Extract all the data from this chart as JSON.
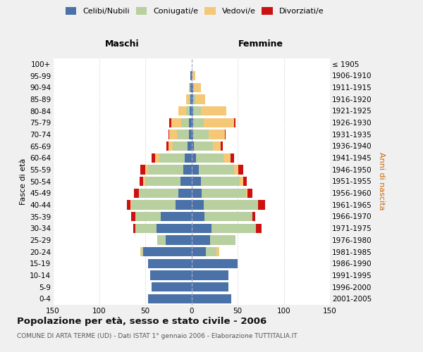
{
  "age_groups": [
    "0-4",
    "5-9",
    "10-14",
    "15-19",
    "20-24",
    "25-29",
    "30-34",
    "35-39",
    "40-44",
    "45-49",
    "50-54",
    "55-59",
    "60-64",
    "65-69",
    "70-74",
    "75-79",
    "80-84",
    "85-89",
    "90-94",
    "95-99",
    "100+"
  ],
  "birth_years": [
    "2001-2005",
    "1996-2000",
    "1991-1995",
    "1986-1990",
    "1981-1985",
    "1976-1980",
    "1971-1975",
    "1966-1970",
    "1961-1965",
    "1956-1960",
    "1951-1955",
    "1946-1950",
    "1941-1945",
    "1936-1940",
    "1931-1935",
    "1926-1930",
    "1921-1925",
    "1916-1920",
    "1911-1915",
    "1906-1910",
    "≤ 1905"
  ],
  "colors": {
    "celibi": "#4a72a8",
    "coniugati": "#b8cfa0",
    "vedovi": "#f5c878",
    "divorziati": "#cc1111"
  },
  "maschi_celibi": [
    47,
    43,
    45,
    47,
    52,
    28,
    38,
    33,
    17,
    14,
    12,
    9,
    7,
    4,
    3,
    3,
    2,
    1,
    1,
    1,
    0
  ],
  "maschi_coniugati": [
    0,
    0,
    0,
    0,
    2,
    9,
    23,
    28,
    48,
    42,
    38,
    38,
    28,
    16,
    13,
    8,
    4,
    2,
    1,
    0,
    0
  ],
  "maschi_vedovi": [
    0,
    0,
    0,
    0,
    1,
    0,
    0,
    0,
    1,
    1,
    2,
    3,
    4,
    5,
    8,
    11,
    8,
    3,
    1,
    0,
    0
  ],
  "maschi_divorziati": [
    0,
    0,
    0,
    0,
    0,
    0,
    2,
    4,
    4,
    5,
    4,
    5,
    4,
    2,
    1,
    2,
    0,
    0,
    0,
    0,
    0
  ],
  "femmine_celibi": [
    43,
    40,
    40,
    50,
    16,
    20,
    22,
    14,
    13,
    11,
    10,
    8,
    5,
    3,
    2,
    2,
    2,
    2,
    2,
    1,
    0
  ],
  "femmine_coniugati": [
    0,
    0,
    0,
    0,
    11,
    28,
    48,
    52,
    58,
    48,
    42,
    38,
    30,
    20,
    17,
    11,
    8,
    2,
    1,
    0,
    0
  ],
  "femmine_vedovi": [
    0,
    0,
    0,
    0,
    3,
    0,
    0,
    0,
    1,
    2,
    4,
    5,
    7,
    9,
    17,
    33,
    28,
    11,
    7,
    3,
    0
  ],
  "femmine_divorziati": [
    0,
    0,
    0,
    0,
    0,
    0,
    6,
    3,
    8,
    5,
    4,
    5,
    4,
    2,
    1,
    2,
    0,
    0,
    0,
    0,
    0
  ],
  "title": "Popolazione per età, sesso e stato civile - 2006",
  "subtitle": "COMUNE DI ARTA TERME (UD) - Dati ISTAT 1° gennaio 2006 - Elaborazione TUTTITALIA.IT",
  "label_maschi": "Maschi",
  "label_femmine": "Femmine",
  "ylabel_left": "Fasce di età",
  "ylabel_right": "Anni di nascita",
  "xlim": 150,
  "legend_labels": [
    "Celibi/Nubili",
    "Coniugati/e",
    "Vedovi/e",
    "Divorziati/e"
  ],
  "bg_color": "#f0f0f0",
  "plot_bg": "#ffffff",
  "grid_color": "#cccccc"
}
